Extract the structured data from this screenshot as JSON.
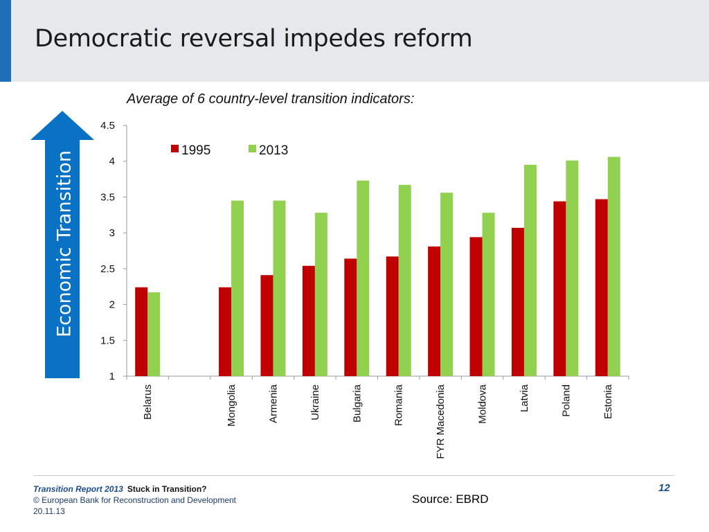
{
  "header": {
    "title": "Democratic reversal impedes reform"
  },
  "subtitle": "Average of 6 country-level transition indicators:",
  "side_arrow": {
    "label": "Economic Transition",
    "color": "#0a72c4"
  },
  "footer": {
    "report": "Transition Report 2013",
    "report_subtitle": "Stuck in Transition?",
    "copyright": "© European Bank for Reconstruction and Development",
    "date": "20.11.13",
    "page": "12",
    "source_label": "Source:",
    "source_value": "EBRD"
  },
  "chart_data": {
    "type": "bar",
    "title": "",
    "xlabel": "",
    "ylabel": "",
    "categories": [
      "Belarus",
      "",
      "Mongolia",
      "Armenia",
      "Ukraine",
      "Bulgaria",
      "Romania",
      "FYR Macedonia",
      "Moldova",
      "Latvia",
      "Poland",
      "Estonia"
    ],
    "series": [
      {
        "name": "1995",
        "color": "#c00000",
        "values": [
          2.24,
          null,
          2.24,
          2.41,
          2.54,
          2.64,
          2.67,
          2.81,
          2.94,
          3.07,
          3.44,
          3.47
        ]
      },
      {
        "name": "2013",
        "color": "#92d050",
        "values": [
          2.17,
          null,
          3.45,
          3.45,
          3.28,
          3.73,
          3.67,
          3.56,
          3.28,
          3.95,
          4.01,
          4.06
        ]
      }
    ],
    "ylim": [
      1,
      4.5
    ],
    "yticks": [
      "1",
      "1.5",
      "2",
      "2.5",
      "3",
      "3.5",
      "4",
      "4.5"
    ],
    "ytick_values": [
      1,
      1.5,
      2,
      2.5,
      3,
      3.5,
      4,
      4.5
    ],
    "grid": false,
    "legend": "top-left"
  }
}
